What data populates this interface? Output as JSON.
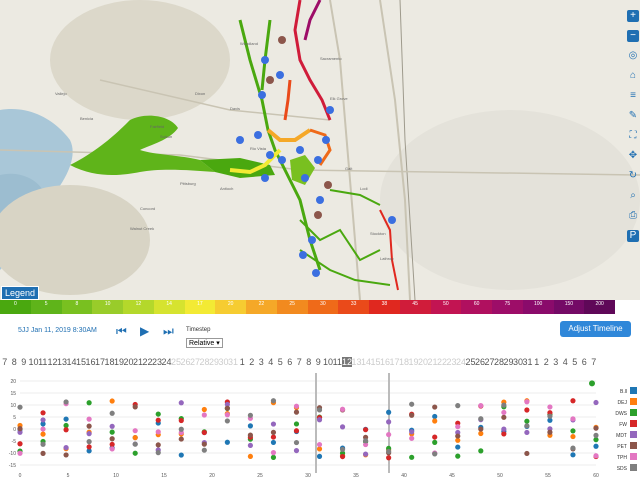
{
  "map": {
    "legend_label": "Legend",
    "toolbar_icons": [
      "zoom-in-icon",
      "zoom-out-icon",
      "locate-icon",
      "home-icon",
      "layers-icon",
      "measure-icon",
      "fullscreen-icon",
      "pan-icon",
      "rotate-icon",
      "search-icon",
      "print-icon",
      "parking-icon"
    ],
    "places": [
      "Fairfield",
      "Suisun",
      "Dixon",
      "Davis",
      "Woodland",
      "Sacramento",
      "Elk Grove",
      "Galt",
      "Lodi",
      "Rio Vista",
      "Antioch",
      "Pittsburg",
      "Concord",
      "Walnut Creek",
      "Stockton",
      "Lathrop",
      "Vallejo",
      "Benicia"
    ]
  },
  "colorbar": {
    "colors": [
      "#4aa80f",
      "#5fb41a",
      "#79c020",
      "#99cc2a",
      "#b4d82b",
      "#d6e32f",
      "#f3ea34",
      "#f6cc31",
      "#f5a828",
      "#f28a1f",
      "#ef6a19",
      "#ea4a1a",
      "#e0281f",
      "#d01c3a",
      "#c21452",
      "#b0105f",
      "#9d0d68",
      "#8a0b6b",
      "#740a66",
      "#5f0858"
    ],
    "labels": [
      "0",
      "5",
      "8",
      "10",
      "12",
      "14",
      "17",
      "20",
      "22",
      "25",
      "30",
      "33",
      "38",
      "45",
      "50",
      "60",
      "75",
      "100",
      "150",
      "200"
    ]
  },
  "controls": {
    "date": "5JJ Jan 11, 2019 8:30AM",
    "timestep_label": "Timestep",
    "timestep_value": "Relative",
    "adjust_label": "Adjust Timeline"
  },
  "days": [
    "7",
    "8",
    "9",
    "10",
    "11",
    "12",
    "13",
    "14",
    "15",
    "16",
    "17",
    "18",
    "19",
    "20",
    "21",
    "22",
    "23",
    "24",
    "25",
    "26",
    "27",
    "28",
    "29",
    "30",
    "31",
    "1",
    "2",
    "3",
    "4",
    "5",
    "6",
    "7",
    "8",
    "9",
    "10",
    "11",
    "12",
    "13",
    "14",
    "15",
    "16",
    "17",
    "18",
    "19",
    "20",
    "21",
    "22",
    "23",
    "24",
    "25",
    "26",
    "27",
    "28",
    "29",
    "30",
    "31",
    "1",
    "2",
    "3",
    "4",
    "5",
    "6",
    "7"
  ],
  "chart_data": {
    "type": "scatter",
    "x_ticks": [
      "0",
      "5",
      "10",
      "15",
      "20",
      "25",
      "30",
      "35",
      "40",
      "45",
      "50",
      "55",
      "60"
    ],
    "y_ticks": [
      "20",
      "15",
      "10",
      "5",
      "0",
      "-5",
      "-10",
      "-15"
    ],
    "ylim": [
      -15,
      20
    ],
    "series": [
      {
        "name": "B.ll",
        "color": "#1f77b4"
      },
      {
        "name": "DEJ",
        "color": "#ff7f0e"
      },
      {
        "name": "DWS",
        "color": "#2ca02c"
      },
      {
        "name": "FW",
        "color": "#d62728"
      },
      {
        "name": "MDT",
        "color": "#9467bd"
      },
      {
        "name": "PET",
        "color": "#8c564b"
      },
      {
        "name": "TPH",
        "color": "#e377c2"
      },
      {
        "name": "SDS",
        "color": "#7f7f7f"
      }
    ]
  }
}
